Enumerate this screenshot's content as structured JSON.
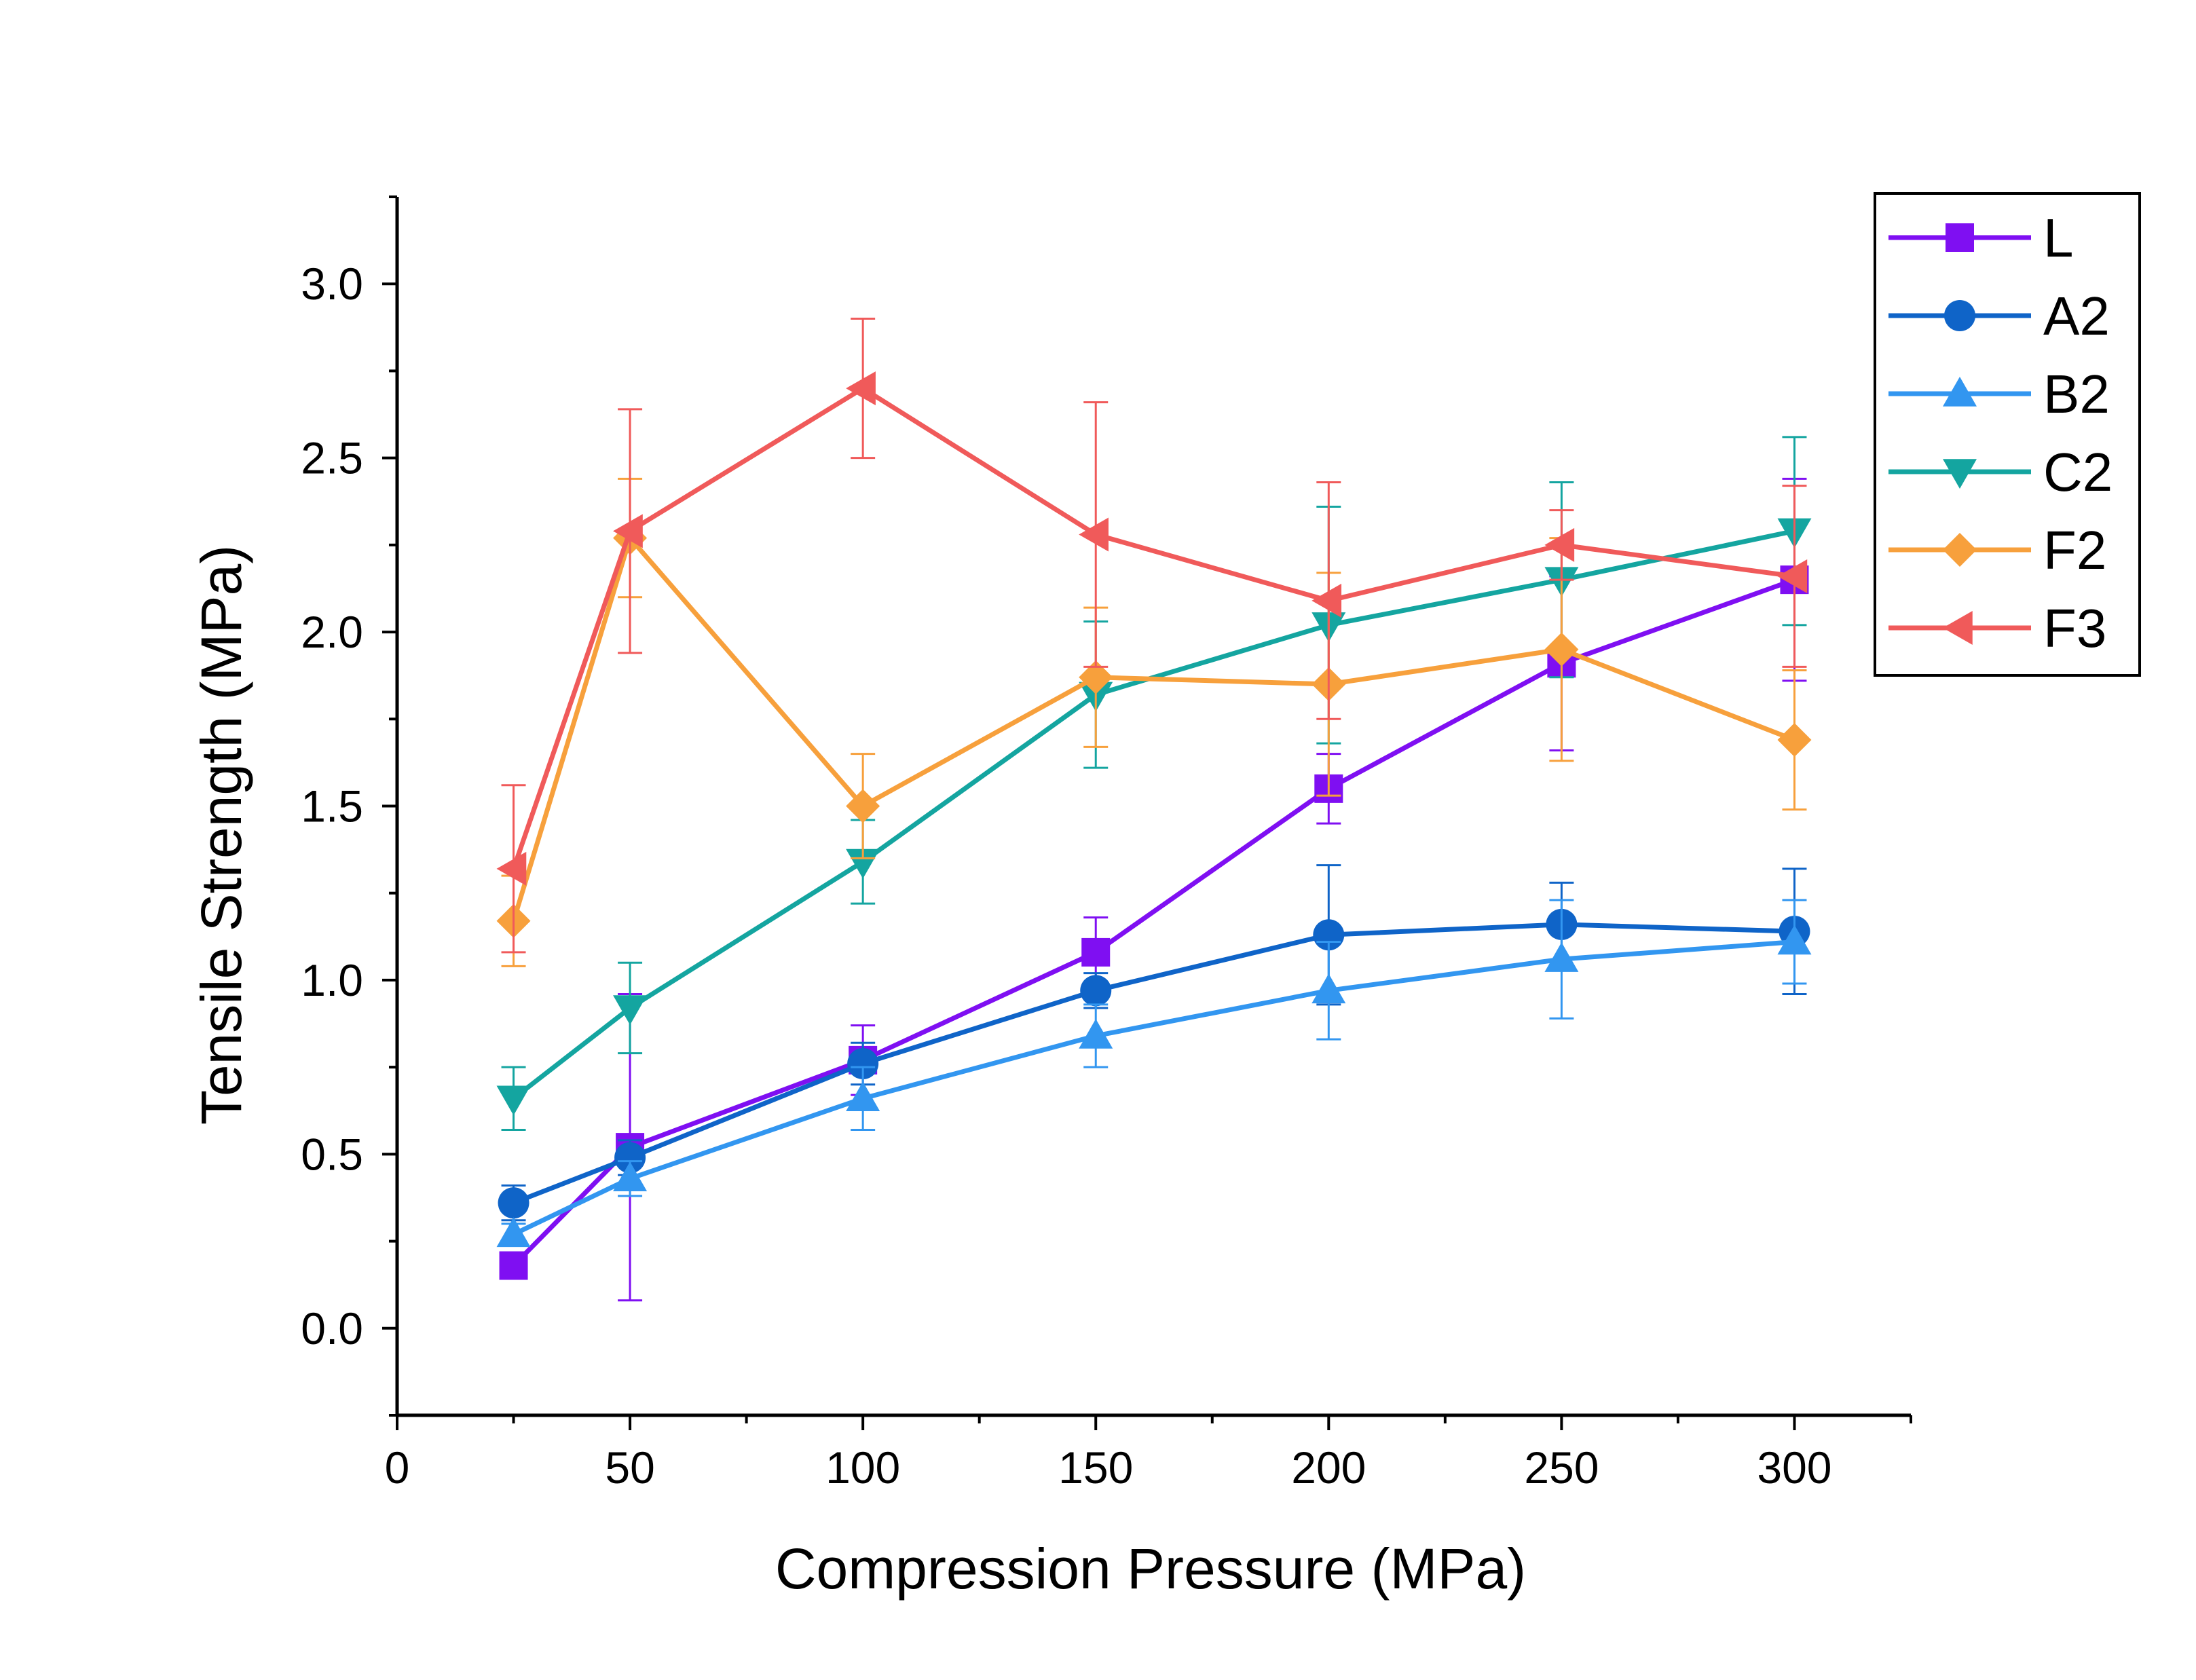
{
  "chart_data": {
    "type": "line",
    "xlabel": "Compression Pressure (MPa)",
    "ylabel": "Tensile Strength (MPa)",
    "xlim": [
      0,
      325
    ],
    "ylim": [
      -0.25,
      3.25
    ],
    "xticks": [
      0,
      50,
      100,
      150,
      200,
      250,
      300
    ],
    "yticks": [
      0.0,
      0.5,
      1.0,
      1.5,
      2.0,
      2.5,
      3.0
    ],
    "xtick_labels": [
      "0",
      "50",
      "100",
      "150",
      "200",
      "250",
      "300"
    ],
    "ytick_labels": [
      "0.0",
      "0.5",
      "1.0",
      "1.5",
      "2.0",
      "2.5",
      "3.0"
    ],
    "x": [
      25,
      50,
      100,
      150,
      200,
      250,
      300
    ],
    "legend_position": "top-right",
    "grid": false,
    "series": [
      {
        "name": "L",
        "color": "#7f0ff2",
        "marker": "square",
        "values": [
          0.18,
          0.52,
          0.77,
          1.08,
          1.55,
          1.91,
          2.15
        ],
        "errors": [
          0.03,
          0.44,
          0.1,
          0.1,
          0.1,
          0.25,
          0.29
        ]
      },
      {
        "name": "A2",
        "color": "#0f64c8",
        "marker": "circle",
        "values": [
          0.36,
          0.49,
          0.76,
          0.97,
          1.13,
          1.16,
          1.14
        ],
        "errors": [
          0.05,
          0.05,
          0.06,
          0.05,
          0.2,
          0.12,
          0.18
        ]
      },
      {
        "name": "B2",
        "color": "#3296f0",
        "marker": "triangle-up",
        "values": [
          0.27,
          0.43,
          0.66,
          0.84,
          0.97,
          1.06,
          1.11
        ],
        "errors": [
          0.03,
          0.05,
          0.09,
          0.09,
          0.14,
          0.17,
          0.12
        ]
      },
      {
        "name": "C2",
        "color": "#14a5a0",
        "marker": "triangle-down",
        "values": [
          0.66,
          0.92,
          1.34,
          1.82,
          2.02,
          2.15,
          2.29
        ],
        "errors": [
          0.09,
          0.13,
          0.12,
          0.21,
          0.34,
          0.28,
          0.27
        ]
      },
      {
        "name": "F2",
        "color": "#f7a03c",
        "marker": "diamond",
        "values": [
          1.17,
          2.27,
          1.5,
          1.87,
          1.85,
          1.95,
          1.69
        ],
        "errors": [
          0.13,
          0.17,
          0.15,
          0.2,
          0.32,
          0.32,
          0.2
        ]
      },
      {
        "name": "F3",
        "color": "#f05a5a",
        "marker": "triangle-left",
        "values": [
          1.32,
          2.29,
          2.7,
          2.28,
          2.09,
          2.25,
          2.16
        ],
        "errors": [
          0.24,
          0.35,
          0.2,
          0.38,
          0.34,
          0.1,
          0.26
        ]
      }
    ]
  }
}
